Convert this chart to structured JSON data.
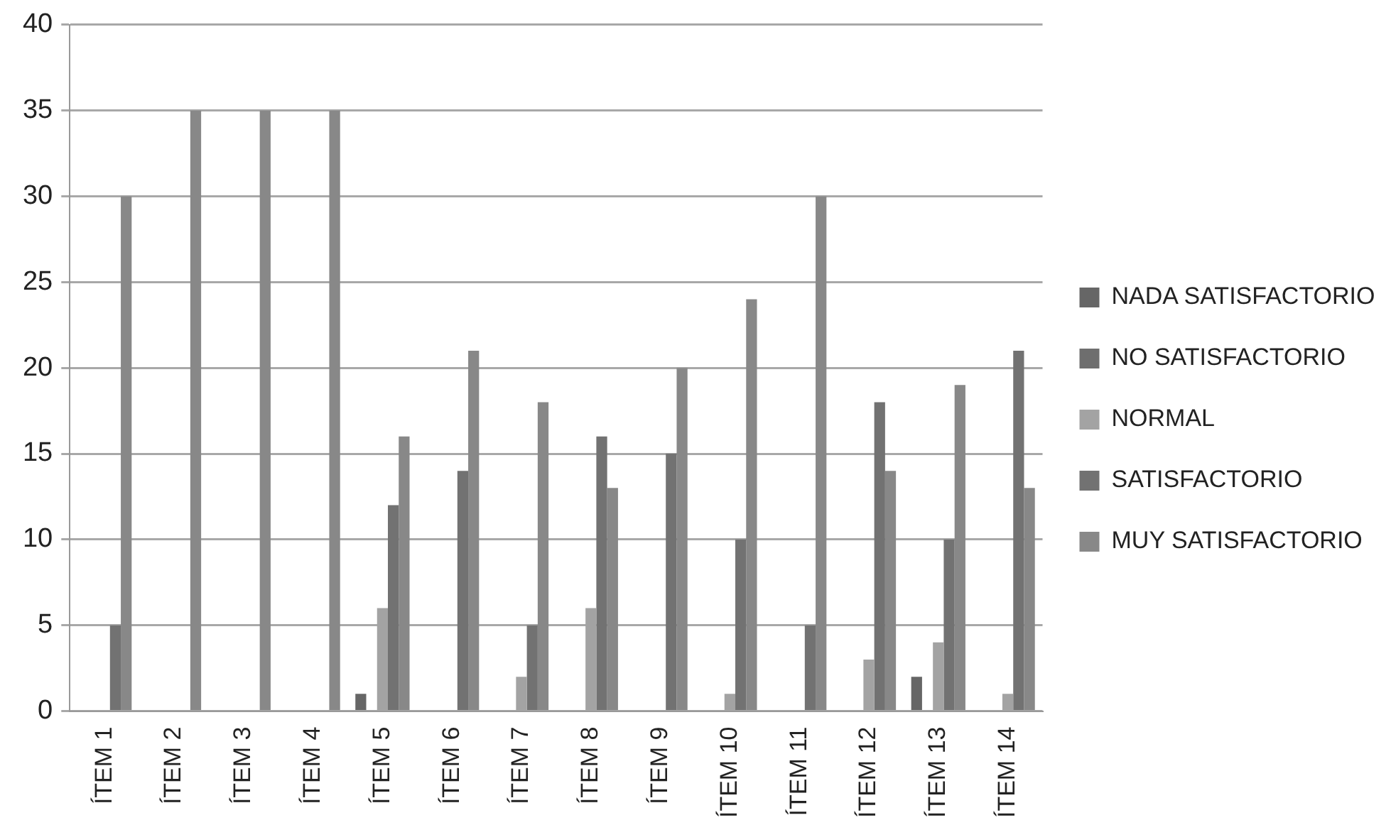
{
  "chart_data": {
    "type": "bar",
    "categories": [
      "ÍTEM 1",
      "ÍTEM 2",
      "ÍTEM 3",
      "ÍTEM 4",
      "ÍTEM 5",
      "ÍTEM 6",
      "ÍTEM 7",
      "ÍTEM 8",
      "ÍTEM 9",
      "ÍTEM 10",
      "ÍTEM 11",
      "ÍTEM 12",
      "ÍTEM 13",
      "ÍTEM 14"
    ],
    "series": [
      {
        "name": "NADA SATISFACTORIO",
        "color": "#666666",
        "values": [
          0,
          0,
          0,
          0,
          1,
          0,
          0,
          0,
          0,
          0,
          0,
          0,
          2,
          0
        ]
      },
      {
        "name": "NO SATISFACTORIO",
        "color": "#6e6e6e",
        "values": [
          0,
          0,
          0,
          0,
          0,
          0,
          0,
          0,
          0,
          0,
          0,
          0,
          0,
          0
        ]
      },
      {
        "name": "NORMAL",
        "color": "#a3a3a3",
        "values": [
          0,
          0,
          0,
          0,
          6,
          0,
          2,
          6,
          0,
          1,
          0,
          3,
          4,
          1
        ]
      },
      {
        "name": "SATISFACTORIO",
        "color": "#727272",
        "values": [
          5,
          0,
          0,
          0,
          12,
          14,
          5,
          16,
          15,
          10,
          5,
          18,
          10,
          21
        ]
      },
      {
        "name": "MUY SATISFACTORIO",
        "color": "#888888",
        "values": [
          30,
          35,
          35,
          35,
          16,
          21,
          18,
          13,
          20,
          24,
          30,
          14,
          19,
          13
        ]
      }
    ],
    "ylim": [
      0,
      40
    ],
    "yticks": [
      0,
      5,
      10,
      15,
      20,
      25,
      30,
      35,
      40
    ],
    "grid": "y",
    "legend": "right"
  }
}
